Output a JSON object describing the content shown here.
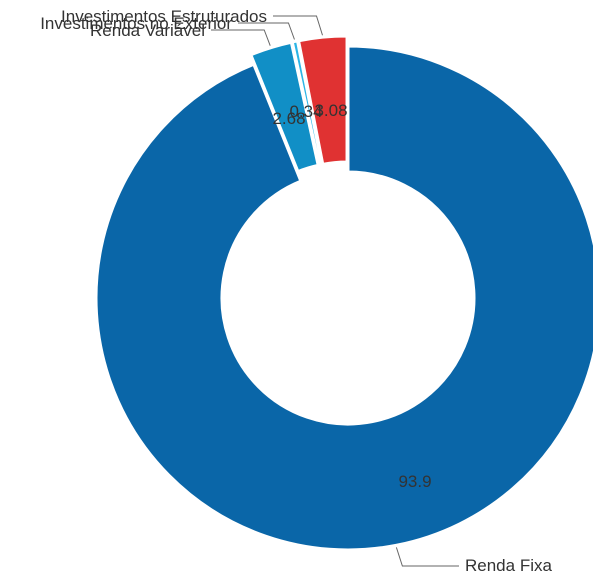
{
  "chart_data": {
    "type": "donut",
    "slices": [
      {
        "label": "Renda Fixa",
        "value": 93.9,
        "value_label": "93.9",
        "color": "#0a66a8"
      },
      {
        "label": "Renda Variável",
        "value": 2.68,
        "value_label": "2.68",
        "color": "#118fc6"
      },
      {
        "label": "Investimentos no Exterior",
        "value": 0.34,
        "value_label": "0.34",
        "color": "#2bb5e6"
      },
      {
        "label": "Investimentos Estruturados",
        "value": 3.08,
        "value_label": "3.08",
        "color": "#e03232"
      }
    ]
  }
}
